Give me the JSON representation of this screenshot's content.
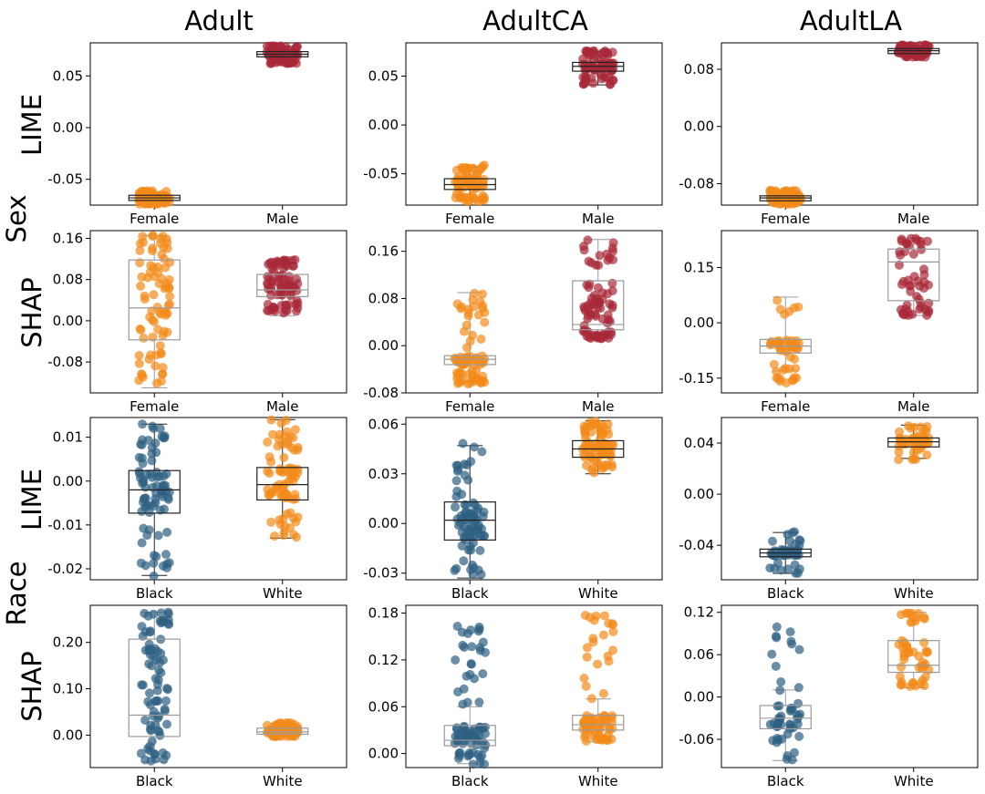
{
  "figure": {
    "column_titles": [
      "Adult",
      "AdultCA",
      "AdultLA"
    ],
    "group_titles": [
      "Sex",
      "Race"
    ],
    "row_titles": [
      "LIME",
      "SHAP",
      "LIME",
      "SHAP"
    ]
  },
  "colors": {
    "female": "#f28a1a",
    "male": "#a82838",
    "black": "#2e5f82",
    "white": "#f28a1a",
    "box_dark": "#222222",
    "box_light": "#9a9a9a"
  },
  "chart_data": [
    {
      "type": "box+strip",
      "dataset": "Adult",
      "group": "Sex",
      "method": "LIME",
      "categories": [
        "Female",
        "Male"
      ],
      "ylim": [
        -0.075,
        0.082
      ],
      "yticks": [
        -0.05,
        0.0,
        0.05
      ],
      "ytick_labels": [
        "-0.05",
        "0.00",
        "0.05"
      ],
      "series": [
        {
          "name": "Female",
          "color": "female",
          "box_color": "dark",
          "n": 80,
          "median": -0.068,
          "q1": -0.0705,
          "q3": -0.0655,
          "whisker_low": -0.0735,
          "whisker_high": -0.0625,
          "spread": [
            -0.074,
            -0.061
          ]
        },
        {
          "name": "Male",
          "color": "male",
          "box_color": "dark",
          "n": 80,
          "median": 0.071,
          "q1": 0.0685,
          "q3": 0.0735,
          "whisker_low": 0.0625,
          "whisker_high": 0.0785,
          "spread": [
            0.062,
            0.079
          ]
        }
      ]
    },
    {
      "type": "box+strip",
      "dataset": "AdultCA",
      "group": "Sex",
      "method": "LIME",
      "categories": [
        "Female",
        "Male"
      ],
      "ylim": [
        -0.082,
        0.084
      ],
      "yticks": [
        -0.05,
        0.0,
        0.05
      ],
      "ytick_labels": [
        "-0.05",
        "0.00",
        "0.05"
      ],
      "series": [
        {
          "name": "Female",
          "color": "female",
          "box_color": "dark",
          "n": 80,
          "median": -0.061,
          "q1": -0.066,
          "q3": -0.055,
          "whisker_low": -0.077,
          "whisker_high": -0.043,
          "spread": [
            -0.079,
            -0.041
          ]
        },
        {
          "name": "Male",
          "color": "male",
          "box_color": "dark",
          "n": 80,
          "median": 0.06,
          "q1": 0.055,
          "q3": 0.064,
          "whisker_low": 0.041,
          "whisker_high": 0.075,
          "spread": [
            0.04,
            0.076
          ]
        }
      ]
    },
    {
      "type": "box+strip",
      "dataset": "AdultLA",
      "group": "Sex",
      "method": "LIME",
      "categories": [
        "Female",
        "Male"
      ],
      "ylim": [
        -0.11,
        0.117
      ],
      "yticks": [
        -0.08,
        0.0,
        0.08
      ],
      "ytick_labels": [
        "-0.08",
        "0.00",
        "0.08"
      ],
      "series": [
        {
          "name": "Female",
          "color": "female",
          "box_color": "dark",
          "n": 80,
          "median": -0.1,
          "q1": -0.104,
          "q3": -0.097,
          "whisker_low": -0.108,
          "whisker_high": -0.092,
          "spread": [
            -0.109,
            -0.089
          ]
        },
        {
          "name": "Male",
          "color": "male",
          "box_color": "dark",
          "n": 80,
          "median": 0.106,
          "q1": 0.102,
          "q3": 0.109,
          "whisker_low": 0.098,
          "whisker_high": 0.113,
          "spread": [
            0.097,
            0.114
          ]
        }
      ]
    },
    {
      "type": "box+strip",
      "dataset": "Adult",
      "group": "Sex",
      "method": "SHAP",
      "categories": [
        "Female",
        "Male"
      ],
      "ylim": [
        -0.14,
        0.175
      ],
      "yticks": [
        -0.08,
        0.0,
        0.08,
        0.16
      ],
      "ytick_labels": [
        "-0.08",
        "0.00",
        "0.08",
        "0.16"
      ],
      "series": [
        {
          "name": "Female",
          "color": "female",
          "box_color": "light",
          "n": 80,
          "median": 0.025,
          "q1": -0.037,
          "q3": 0.118,
          "whisker_low": -0.13,
          "whisker_high": 0.165,
          "spread": [
            -0.125,
            0.165
          ]
        },
        {
          "name": "Male",
          "color": "male",
          "box_color": "light",
          "n": 80,
          "median": 0.06,
          "q1": 0.047,
          "q3": 0.09,
          "whisker_low": 0.01,
          "whisker_high": 0.12,
          "spread": [
            0.01,
            0.12
          ]
        }
      ]
    },
    {
      "type": "box+strip",
      "dataset": "AdultCA",
      "group": "Sex",
      "method": "SHAP",
      "categories": [
        "Female",
        "Male"
      ],
      "ylim": [
        -0.08,
        0.195
      ],
      "yticks": [
        -0.08,
        0.0,
        0.08,
        0.16
      ],
      "ytick_labels": [
        "-0.08",
        "0.00",
        "0.08",
        "0.16"
      ],
      "series": [
        {
          "name": "Female",
          "color": "female",
          "box_color": "light",
          "n": 80,
          "median": -0.023,
          "q1": -0.032,
          "q3": -0.017,
          "whisker_low": -0.06,
          "whisker_high": 0.09,
          "spread": [
            -0.065,
            0.09
          ]
        },
        {
          "name": "Male",
          "color": "male",
          "box_color": "light",
          "n": 80,
          "median": 0.036,
          "q1": 0.027,
          "q3": 0.11,
          "whisker_low": 0.012,
          "whisker_high": 0.18,
          "spread": [
            0.012,
            0.18
          ]
        }
      ]
    },
    {
      "type": "box+strip",
      "dataset": "AdultLA",
      "group": "Sex",
      "method": "SHAP",
      "categories": [
        "Female",
        "Male"
      ],
      "ylim": [
        -0.19,
        0.25
      ],
      "yticks": [
        -0.15,
        0.0,
        0.15
      ],
      "ytick_labels": [
        "-0.15",
        "0.00",
        "0.15"
      ],
      "series": [
        {
          "name": "Female",
          "color": "female",
          "box_color": "light",
          "n": 50,
          "median": -0.063,
          "q1": -0.082,
          "q3": -0.045,
          "whisker_low": -0.13,
          "whisker_high": 0.07,
          "spread": [
            -0.17,
            0.07
          ]
        },
        {
          "name": "Male",
          "color": "male",
          "box_color": "light",
          "n": 50,
          "median": 0.165,
          "q1": 0.06,
          "q3": 0.2,
          "whisker_low": 0.02,
          "whisker_high": 0.23,
          "spread": [
            0.02,
            0.23
          ]
        }
      ]
    },
    {
      "type": "box+strip",
      "dataset": "Adult",
      "group": "Race",
      "method": "LIME",
      "categories": [
        "Black",
        "White"
      ],
      "ylim": [
        -0.0225,
        0.0145
      ],
      "yticks": [
        -0.02,
        -0.01,
        0.0,
        0.01
      ],
      "ytick_labels": [
        "-0.02",
        "-0.01",
        "0.00",
        "0.01"
      ],
      "series": [
        {
          "name": "Black",
          "color": "black",
          "box_color": "dark",
          "n": 80,
          "median": -0.002,
          "q1": -0.0073,
          "q3": 0.0024,
          "whisker_low": -0.0215,
          "whisker_high": 0.013,
          "spread": [
            -0.0218,
            0.013
          ]
        },
        {
          "name": "White",
          "color": "white",
          "box_color": "dark",
          "n": 80,
          "median": -0.0008,
          "q1": -0.0043,
          "q3": 0.0031,
          "whisker_low": -0.013,
          "whisker_high": 0.014,
          "spread": [
            -0.013,
            0.014
          ]
        }
      ]
    },
    {
      "type": "box+strip",
      "dataset": "AdultCA",
      "group": "Race",
      "method": "LIME",
      "categories": [
        "Black",
        "White"
      ],
      "ylim": [
        -0.034,
        0.064
      ],
      "yticks": [
        -0.03,
        0.0,
        0.03,
        0.06
      ],
      "ytick_labels": [
        "-0.03",
        "0.00",
        "0.03",
        "0.06"
      ],
      "series": [
        {
          "name": "Black",
          "color": "black",
          "box_color": "dark",
          "n": 80,
          "median": 0.002,
          "q1": -0.01,
          "q3": 0.013,
          "whisker_low": -0.033,
          "whisker_high": 0.047,
          "spread": [
            -0.033,
            0.05
          ]
        },
        {
          "name": "White",
          "color": "white",
          "box_color": "dark",
          "n": 80,
          "median": 0.045,
          "q1": 0.04,
          "q3": 0.05,
          "whisker_low": 0.03,
          "whisker_high": 0.062,
          "spread": [
            0.03,
            0.062
          ]
        }
      ]
    },
    {
      "type": "box+strip",
      "dataset": "AdultLA",
      "group": "Race",
      "method": "LIME",
      "categories": [
        "Black",
        "White"
      ],
      "ylim": [
        -0.067,
        0.06
      ],
      "yticks": [
        -0.04,
        0.0,
        0.04
      ],
      "ytick_labels": [
        "-0.04",
        "0.00",
        "0.04"
      ],
      "series": [
        {
          "name": "Black",
          "color": "black",
          "box_color": "dark",
          "n": 50,
          "median": -0.046,
          "q1": -0.049,
          "q3": -0.043,
          "whisker_low": -0.062,
          "whisker_high": -0.03,
          "spread": [
            -0.062,
            -0.028
          ]
        },
        {
          "name": "White",
          "color": "white",
          "box_color": "dark",
          "n": 50,
          "median": 0.041,
          "q1": 0.037,
          "q3": 0.044,
          "whisker_low": 0.028,
          "whisker_high": 0.054,
          "spread": [
            0.027,
            0.054
          ]
        }
      ]
    },
    {
      "type": "box+strip",
      "dataset": "Adult",
      "group": "Race",
      "method": "SHAP",
      "categories": [
        "Black",
        "White"
      ],
      "ylim": [
        -0.07,
        0.28
      ],
      "yticks": [
        0.0,
        0.1,
        0.2
      ],
      "ytick_labels": [
        "0.00",
        "0.10",
        "0.20"
      ],
      "series": [
        {
          "name": "Black",
          "color": "black",
          "box_color": "light",
          "n": 80,
          "median": 0.043,
          "q1": -0.003,
          "q3": 0.207,
          "whisker_low": -0.058,
          "whisker_high": 0.265,
          "spread": [
            -0.058,
            0.268
          ]
        },
        {
          "name": "White",
          "color": "white",
          "box_color": "light",
          "n": 80,
          "median": 0.007,
          "q1": 0.002,
          "q3": 0.015,
          "whisker_low": -0.003,
          "whisker_high": 0.025,
          "spread": [
            -0.003,
            0.027
          ]
        }
      ]
    },
    {
      "type": "box+strip",
      "dataset": "AdultCA",
      "group": "Race",
      "method": "SHAP",
      "categories": [
        "Black",
        "White"
      ],
      "ylim": [
        -0.018,
        0.19
      ],
      "yticks": [
        0.0,
        0.06,
        0.12,
        0.18
      ],
      "ytick_labels": [
        "0.00",
        "0.06",
        "0.12",
        "0.18"
      ],
      "series": [
        {
          "name": "Black",
          "color": "black",
          "box_color": "light",
          "n": 80,
          "median": 0.017,
          "q1": 0.01,
          "q3": 0.036,
          "whisker_low": -0.013,
          "whisker_high": 0.06,
          "spread": [
            -0.014,
            0.165
          ]
        },
        {
          "name": "White",
          "color": "white",
          "box_color": "light",
          "n": 80,
          "median": 0.037,
          "q1": 0.03,
          "q3": 0.049,
          "whisker_low": 0.015,
          "whisker_high": 0.07,
          "spread": [
            0.015,
            0.18
          ]
        }
      ]
    },
    {
      "type": "box+strip",
      "dataset": "AdultLA",
      "group": "Race",
      "method": "SHAP",
      "categories": [
        "Black",
        "White"
      ],
      "ylim": [
        -0.1,
        0.13
      ],
      "yticks": [
        -0.06,
        0.0,
        0.06,
        0.12
      ],
      "ytick_labels": [
        "-0.06",
        "0.00",
        "0.06",
        "0.12"
      ],
      "series": [
        {
          "name": "Black",
          "color": "black",
          "box_color": "light",
          "n": 50,
          "median": -0.03,
          "q1": -0.045,
          "q3": -0.012,
          "whisker_low": -0.09,
          "whisker_high": 0.01,
          "spread": [
            -0.09,
            0.11
          ]
        },
        {
          "name": "White",
          "color": "white",
          "box_color": "light",
          "n": 50,
          "median": 0.045,
          "q1": 0.035,
          "q3": 0.08,
          "whisker_low": 0.013,
          "whisker_high": 0.12,
          "spread": [
            0.013,
            0.12
          ]
        }
      ]
    }
  ]
}
